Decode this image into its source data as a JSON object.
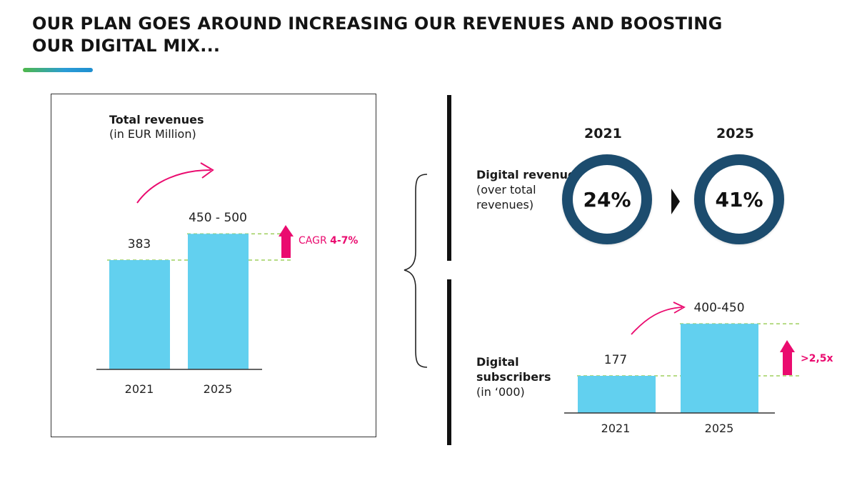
{
  "title": {
    "line1": "OUR PLAN GOES AROUND INCREASING OUR REVENUES AND BOOSTING",
    "line2": "OUR DIGITAL MIX..."
  },
  "colors": {
    "bar": "#62d0ef",
    "accent": "#ea0b6f",
    "ring": "#1c4c6e",
    "dashed": "#8cc63f"
  },
  "chart_data": [
    {
      "type": "bar",
      "title": "Total revenues",
      "subtitle": "(in EUR Million)",
      "categories": [
        "2021",
        "2025"
      ],
      "values": [
        383,
        475
      ],
      "value_labels": [
        "383",
        "450 - 500"
      ],
      "annotation_prefix": "CAGR ",
      "annotation_value": "4-7%"
    },
    {
      "type": "pie",
      "title": "Digital revenues",
      "subtitle_lines": [
        "(over total",
        "revenues)"
      ],
      "categories": [
        "2021",
        "2025"
      ],
      "values": [
        24,
        41
      ],
      "value_labels": [
        "24%",
        "41%"
      ]
    },
    {
      "type": "bar",
      "title_lines": [
        "Digital",
        "subscribers"
      ],
      "subtitle": "(in ‘000)",
      "categories": [
        "2021",
        "2025"
      ],
      "values": [
        177,
        425
      ],
      "value_labels": [
        "177",
        "400-450"
      ],
      "annotation": ">2,5x"
    }
  ]
}
